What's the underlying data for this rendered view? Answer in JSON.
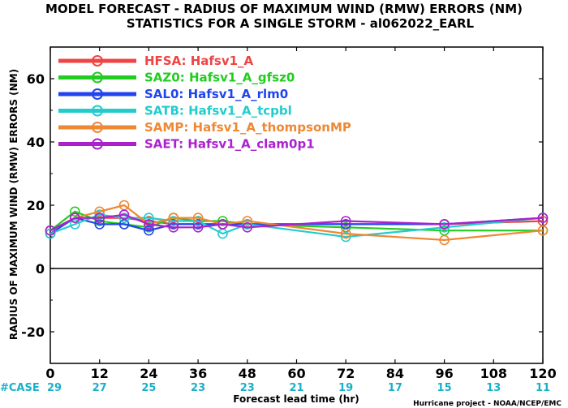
{
  "chart_data": {
    "type": "line",
    "title": "MODEL FORECAST - RADIUS OF MAXIMUM WIND (RMW) ERRORS (NM)",
    "subtitle": "STATISTICS FOR A SINGLE STORM - al062022_EARL",
    "xlabel": "Forecast lead time (hr)",
    "ylabel": "RADIUS OF MAXIMUM WIND (RMW) ERRORS (NM)",
    "xlim": [
      0,
      120
    ],
    "ylim": [
      -30,
      70
    ],
    "x_ticks": [
      0,
      12,
      24,
      36,
      48,
      60,
      72,
      84,
      96,
      108,
      120
    ],
    "y_ticks": [
      -20,
      0,
      20,
      40,
      60
    ],
    "y_tick_labels": [
      "-20",
      "0",
      "20",
      "40",
      "60"
    ],
    "legend_position": "top-left",
    "case_label": "#CASE",
    "case_counts": [
      29,
      27,
      25,
      23,
      23,
      21,
      19,
      17,
      15,
      13,
      11
    ],
    "credit": "Hurricane project - NOAA/NCEP/EMC",
    "series": [
      {
        "name": "HFSA",
        "label": "Hafsv1_A",
        "color": "#ee4444",
        "x": [
          0,
          6,
          12,
          18,
          24,
          30,
          36,
          42,
          48,
          72,
          96,
          120
        ],
        "y": [
          12,
          16,
          16,
          16,
          15,
          14,
          14,
          14,
          14,
          14,
          14,
          15
        ]
      },
      {
        "name": "SAZ0",
        "label": "Hafsv1_A_gfsz0",
        "color": "#22cc22",
        "x": [
          0,
          6,
          12,
          18,
          24,
          30,
          36,
          42,
          48,
          72,
          96,
          120
        ],
        "y": [
          12,
          18,
          15,
          14,
          13,
          16,
          15,
          15,
          14,
          13,
          12,
          12
        ]
      },
      {
        "name": "SAL0",
        "label": "Hafsv1_A_rlm0",
        "color": "#2244ee",
        "x": [
          0,
          6,
          12,
          18,
          24,
          30,
          36,
          42,
          48,
          72,
          96,
          120
        ],
        "y": [
          11,
          16,
          14,
          14,
          12,
          14,
          14,
          14,
          14,
          14,
          14,
          16
        ]
      },
      {
        "name": "SATB",
        "label": "Hafsv1_A_tcpbl",
        "color": "#22cccc",
        "x": [
          0,
          6,
          12,
          18,
          24,
          30,
          36,
          42,
          48,
          72,
          96,
          120
        ],
        "y": [
          11,
          14,
          17,
          16,
          16,
          15,
          15,
          11,
          14,
          10,
          13,
          16
        ]
      },
      {
        "name": "SAMP",
        "label": "Hafsv1_A_thompsonMP",
        "color": "#ee8833",
        "x": [
          0,
          6,
          12,
          18,
          24,
          30,
          36,
          42,
          48,
          72,
          96,
          120
        ],
        "y": [
          12,
          16,
          18,
          20,
          14,
          16,
          16,
          14,
          15,
          11,
          9,
          12
        ]
      },
      {
        "name": "SAET",
        "label": "Hafsv1_A_clam0p1",
        "color": "#aa22cc",
        "x": [
          0,
          6,
          12,
          18,
          24,
          30,
          36,
          42,
          48,
          72,
          96,
          120
        ],
        "y": [
          12,
          16,
          16,
          17,
          14,
          13,
          13,
          14,
          13,
          15,
          14,
          16
        ]
      }
    ]
  }
}
